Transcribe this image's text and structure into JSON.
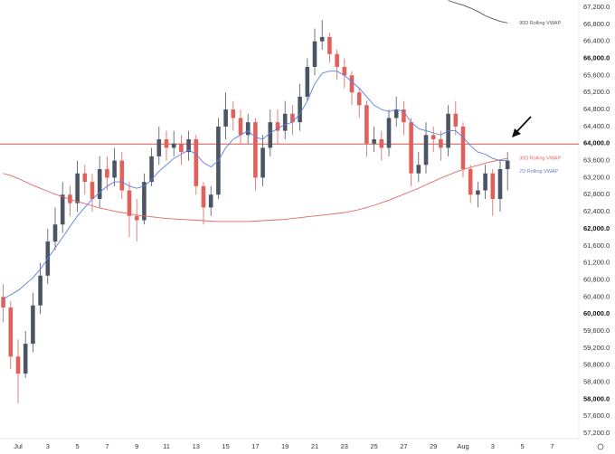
{
  "chart_data": {
    "type": "candlestick",
    "categories": [
      null,
      null,
      "Jul",
      null,
      null,
      null,
      "3",
      null,
      null,
      null,
      "5",
      null,
      null,
      null,
      "7",
      null,
      null,
      null,
      "9",
      null,
      null,
      null,
      "11",
      null,
      null,
      null,
      "13",
      null,
      null,
      null,
      "15",
      null,
      null,
      null,
      "17",
      null,
      null,
      null,
      "19",
      null,
      null,
      null,
      "21",
      null,
      null,
      null,
      "23",
      null,
      null,
      null,
      "25",
      null,
      null,
      null,
      "27",
      null,
      null,
      null,
      "29",
      null,
      null,
      null,
      "Aug",
      null,
      null,
      null,
      "3",
      null,
      null,
      null,
      "5",
      null,
      null,
      null,
      "7",
      null,
      null,
      null
    ],
    "open": [
      60400,
      60150,
      59000,
      58600,
      59300,
      60200,
      60900,
      61700,
      62100,
      62800,
      62600,
      63300,
      63100,
      62700,
      63400,
      63200,
      63600,
      62900,
      62300,
      62200,
      63100,
      63700,
      64100,
      63900,
      64000,
      63800,
      64100,
      63000,
      62500,
      62800,
      64400,
      64800,
      64600,
      64200,
      64500,
      63200,
      63900,
      64500,
      64300,
      64700,
      64500,
      65100,
      65800,
      66400,
      66500,
      66100,
      65800,
      65600,
      65200,
      64900,
      64000,
      64100,
      63900,
      64600,
      64800,
      64500,
      63300,
      63500,
      64200,
      64100,
      63900,
      64700,
      64400,
      63400,
      62800,
      62900,
      63300,
      62700,
      63400,
      null,
      null,
      null,
      null,
      null,
      null,
      null,
      null,
      null
    ],
    "high": [
      60700,
      60300,
      59400,
      59600,
      60500,
      61200,
      62000,
      62500,
      63100,
      63000,
      63600,
      63500,
      63300,
      63700,
      63700,
      63900,
      63800,
      63100,
      62700,
      63300,
      63900,
      64400,
      64300,
      64300,
      64200,
      64300,
      64200,
      63100,
      63000,
      64600,
      65200,
      65000,
      64800,
      64700,
      64600,
      64200,
      64800,
      64800,
      65000,
      64900,
      65400,
      66000,
      66700,
      66900,
      66600,
      66200,
      66000,
      65700,
      65300,
      65000,
      64400,
      64300,
      64800,
      65100,
      65000,
      64600,
      63800,
      64500,
      64400,
      64300,
      64900,
      65000,
      64500,
      63500,
      63100,
      63500,
      63400,
      63600,
      63800,
      null,
      null,
      null,
      null,
      null,
      null,
      null,
      null,
      null
    ],
    "low": [
      59800,
      58700,
      57900,
      58500,
      59100,
      60000,
      60700,
      61500,
      61900,
      62300,
      62400,
      62800,
      62400,
      62500,
      62900,
      63000,
      62700,
      61800,
      61700,
      62100,
      63000,
      63500,
      63600,
      63700,
      63500,
      63600,
      62800,
      62100,
      62300,
      62700,
      64100,
      64300,
      64000,
      64000,
      62900,
      63000,
      63700,
      64000,
      64100,
      64200,
      64300,
      65000,
      65600,
      66200,
      65900,
      65500,
      65300,
      64900,
      64600,
      63700,
      63800,
      63600,
      63700,
      64400,
      64200,
      63000,
      63100,
      63300,
      63800,
      63600,
      63700,
      64200,
      63200,
      62600,
      62500,
      62700,
      62300,
      62400,
      62900,
      null,
      null,
      null,
      null,
      null,
      null,
      null,
      null,
      null
    ],
    "close": [
      60150,
      59000,
      58600,
      59300,
      60200,
      60900,
      61700,
      62100,
      62800,
      62600,
      63300,
      63100,
      62700,
      63400,
      63200,
      63600,
      62900,
      62300,
      62200,
      63100,
      63700,
      64100,
      63900,
      64000,
      63800,
      64100,
      63000,
      62500,
      62800,
      64400,
      64800,
      64600,
      64200,
      64500,
      63200,
      63900,
      64500,
      64300,
      64700,
      64500,
      65100,
      65800,
      66400,
      66500,
      66100,
      65800,
      65600,
      65200,
      64900,
      64000,
      64100,
      63900,
      64600,
      64800,
      64500,
      63300,
      63500,
      64200,
      64100,
      63900,
      64700,
      64400,
      63400,
      62800,
      62900,
      63300,
      62700,
      63400,
      63600,
      null,
      null,
      null,
      null,
      null,
      null,
      null,
      null,
      null
    ],
    "up_color": "#4b5563",
    "down_color": "#e0605c",
    "series": [
      {
        "name": "90D Rolling VWAP",
        "color": "#555555",
        "values": [
          null,
          null,
          null,
          null,
          null,
          null,
          null,
          null,
          null,
          null,
          null,
          null,
          null,
          null,
          null,
          null,
          null,
          null,
          null,
          null,
          null,
          null,
          null,
          null,
          null,
          null,
          null,
          null,
          null,
          null,
          null,
          null,
          null,
          null,
          null,
          null,
          null,
          null,
          null,
          null,
          null,
          null,
          null,
          null,
          null,
          null,
          null,
          null,
          null,
          null,
          null,
          null,
          null,
          null,
          null,
          null,
          null,
          null,
          null,
          null,
          67360,
          67300,
          67250,
          67180,
          67100,
          67000,
          66930,
          66870,
          66830,
          null,
          null,
          null,
          null,
          null,
          null,
          null,
          null,
          null
        ]
      },
      {
        "name": "30D Rolling VWAP",
        "color": "#e06a66",
        "values": [
          63300,
          63250,
          63180,
          63100,
          63020,
          62950,
          62880,
          62810,
          62750,
          62690,
          62640,
          62590,
          62540,
          62490,
          62450,
          62410,
          62380,
          62350,
          62320,
          62300,
          62280,
          62260,
          62240,
          62230,
          62220,
          62210,
          62200,
          62190,
          62180,
          62170,
          62170,
          62170,
          62170,
          62170,
          62180,
          62190,
          62200,
          62210,
          62220,
          62240,
          62260,
          62280,
          62300,
          62320,
          62340,
          62360,
          62380,
          62410,
          62450,
          62500,
          62550,
          62610,
          62670,
          62740,
          62810,
          62880,
          62950,
          63030,
          63110,
          63190,
          63260,
          63330,
          63390,
          63440,
          63490,
          63540,
          63580,
          63620,
          63650,
          null,
          null,
          null,
          null,
          null,
          null,
          null,
          null,
          null
        ]
      },
      {
        "name": "7D Rolling VWAP",
        "color": "#5b7fe0",
        "values": [
          60350,
          60450,
          60550,
          60700,
          60850,
          61050,
          61300,
          61550,
          61800,
          62050,
          62300,
          62500,
          62700,
          62850,
          63000,
          63100,
          63100,
          63000,
          62950,
          63000,
          63150,
          63350,
          63500,
          63650,
          63750,
          63850,
          63750,
          63550,
          63450,
          63600,
          63900,
          64100,
          64200,
          64300,
          64150,
          64100,
          64250,
          64350,
          64450,
          64500,
          64700,
          65000,
          65400,
          65650,
          65700,
          65700,
          65600,
          65450,
          65300,
          65100,
          64900,
          64800,
          64750,
          64800,
          64750,
          64500,
          64350,
          64300,
          64250,
          64200,
          64300,
          64300,
          64150,
          63950,
          63800,
          63750,
          63650,
          63600,
          63600,
          null,
          null,
          null,
          null,
          null,
          null,
          null,
          null,
          null
        ]
      }
    ],
    "hline": 63990,
    "hline_color": "#d9534f",
    "ylim": [
      57073,
      67370
    ],
    "yticks": [
      {
        "value": 57200,
        "label": "57,200.0"
      },
      {
        "value": 57600,
        "label": "57,600.0"
      },
      {
        "value": 58000,
        "label": "58,000.0"
      },
      {
        "value": 58400,
        "label": "58,400.0"
      },
      {
        "value": 58800,
        "label": "58,800.0"
      },
      {
        "value": 59200,
        "label": "59,200.0"
      },
      {
        "value": 59600,
        "label": "59,600.0"
      },
      {
        "value": 60000,
        "label": "60,000.0"
      },
      {
        "value": 60400,
        "label": "60,400.0"
      },
      {
        "value": 60800,
        "label": "60,800.0"
      },
      {
        "value": 61200,
        "label": "61,200.0"
      },
      {
        "value": 61600,
        "label": "61,600.0"
      },
      {
        "value": 62000,
        "label": "62,000.0"
      },
      {
        "value": 62400,
        "label": "62,400.0"
      },
      {
        "value": 62800,
        "label": "62,800.0"
      },
      {
        "value": 63200,
        "label": "63,200.0"
      },
      {
        "value": 63600,
        "label": "63,600.0"
      },
      {
        "value": 64000,
        "label": "64,000.0"
      },
      {
        "value": 64400,
        "label": "64,400.0"
      },
      {
        "value": 64800,
        "label": "64,800.0"
      },
      {
        "value": 65200,
        "label": "65,200.0"
      },
      {
        "value": 65600,
        "label": "65,600.0"
      },
      {
        "value": 66000,
        "label": "66,000.0"
      },
      {
        "value": 66400,
        "label": "66,400.0"
      },
      {
        "value": 66800,
        "label": "66,800.0"
      },
      {
        "value": 67200,
        "label": "67,200.0"
      }
    ]
  }
}
